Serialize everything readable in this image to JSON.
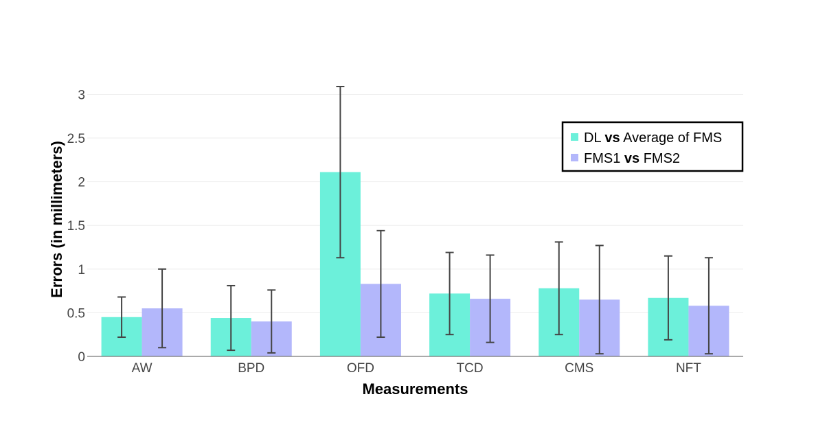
{
  "chart_data": {
    "type": "bar",
    "xlabel": "Measurements",
    "ylabel": "Errors (in millimeters)",
    "categories": [
      "AW",
      "BPD",
      "OFD",
      "TCD",
      "CMS",
      "NFT"
    ],
    "ylim": [
      0,
      3.2
    ],
    "yticks": [
      0,
      0.5,
      1,
      1.5,
      2,
      2.5,
      3
    ],
    "ytick_labels": [
      "0",
      "0.5",
      "1",
      "1.5",
      "2",
      "2.5",
      "3"
    ],
    "grid": true,
    "legend": {
      "placement": "top-right",
      "entries": [
        {
          "parts": [
            "DL ",
            "vs",
            " Average of FMS"
          ]
        },
        {
          "parts": [
            "FMS1 ",
            "vs",
            " FMS2"
          ]
        }
      ]
    },
    "series": [
      {
        "name": "DL vs Average of FMS",
        "color": "#6cf0da",
        "values": [
          0.45,
          0.44,
          2.11,
          0.72,
          0.78,
          0.67
        ],
        "error_low": [
          0.22,
          0.07,
          1.13,
          0.25,
          0.25,
          0.19
        ],
        "error_high": [
          0.68,
          0.81,
          3.09,
          1.19,
          1.31,
          1.15
        ]
      },
      {
        "name": "FMS1 vs FMS2",
        "color": "#b3b7fb",
        "values": [
          0.55,
          0.4,
          0.83,
          0.66,
          0.65,
          0.58
        ],
        "error_low": [
          0.1,
          0.04,
          0.22,
          0.16,
          0.03,
          0.03
        ],
        "error_high": [
          1.0,
          0.76,
          1.44,
          1.16,
          1.27,
          1.13
        ]
      }
    ]
  }
}
